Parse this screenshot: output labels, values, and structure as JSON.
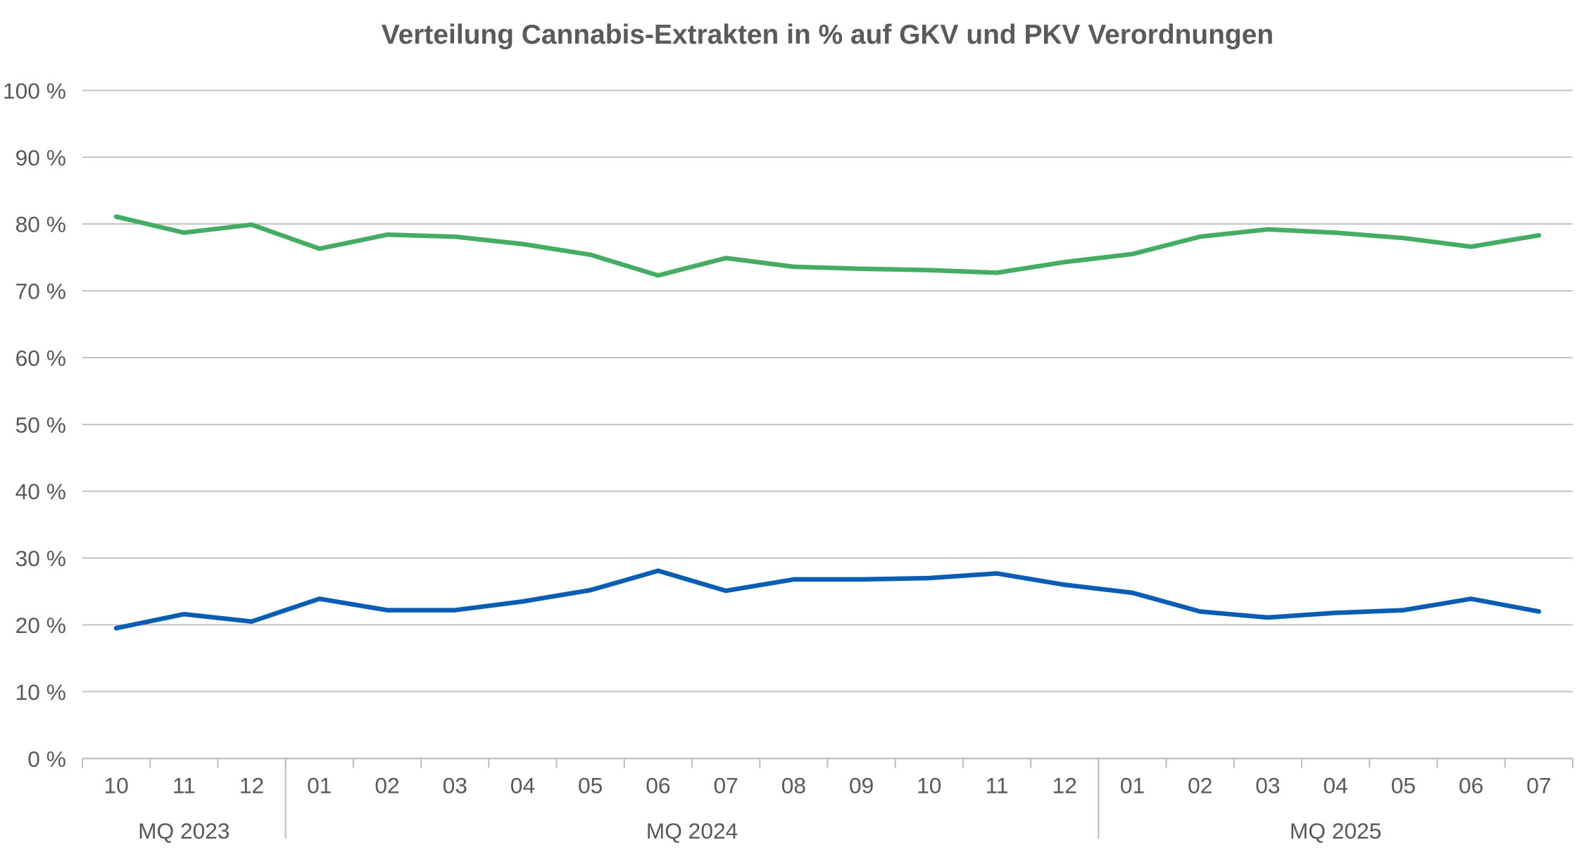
{
  "chart_data": {
    "type": "line",
    "title": "Verteilung Cannabis-Extrakten in % auf GKV und PKV Verordnungen",
    "xlabel": "",
    "ylabel": "",
    "ylim": [
      0,
      100
    ],
    "grid": true,
    "legend": "none",
    "y_ticks": [
      "0 %",
      "10 %",
      "20 %",
      "30 %",
      "40 %",
      "50 %",
      "60 %",
      "70 %",
      "80 %",
      "90 %",
      "100 %"
    ],
    "categories": [
      "10",
      "11",
      "12",
      "01",
      "02",
      "03",
      "04",
      "05",
      "06",
      "07",
      "08",
      "09",
      "10",
      "11",
      "12",
      "01",
      "02",
      "03",
      "04",
      "05",
      "06",
      "07"
    ],
    "groups": [
      {
        "label": "MQ 2023",
        "start": 0,
        "count": 3
      },
      {
        "label": "MQ 2024",
        "start": 3,
        "count": 12
      },
      {
        "label": "MQ 2025",
        "start": 15,
        "count": 7
      }
    ],
    "series": [
      {
        "name": "GKV",
        "color": "#45ad63",
        "values": [
          81.1,
          78.7,
          79.9,
          76.3,
          78.4,
          78.1,
          77.0,
          75.4,
          72.3,
          74.9,
          73.6,
          73.3,
          73.1,
          72.7,
          74.3,
          75.5,
          78.1,
          79.2,
          78.7,
          77.9,
          76.6,
          78.3
        ]
      },
      {
        "name": "PKV",
        "color": "#0a5db3",
        "values": [
          19.5,
          21.6,
          20.5,
          23.9,
          22.2,
          22.2,
          23.5,
          25.2,
          28.1,
          25.1,
          26.8,
          26.8,
          27.0,
          27.7,
          26.0,
          24.8,
          22.0,
          21.1,
          21.8,
          22.2,
          23.9,
          22.0
        ]
      }
    ]
  }
}
